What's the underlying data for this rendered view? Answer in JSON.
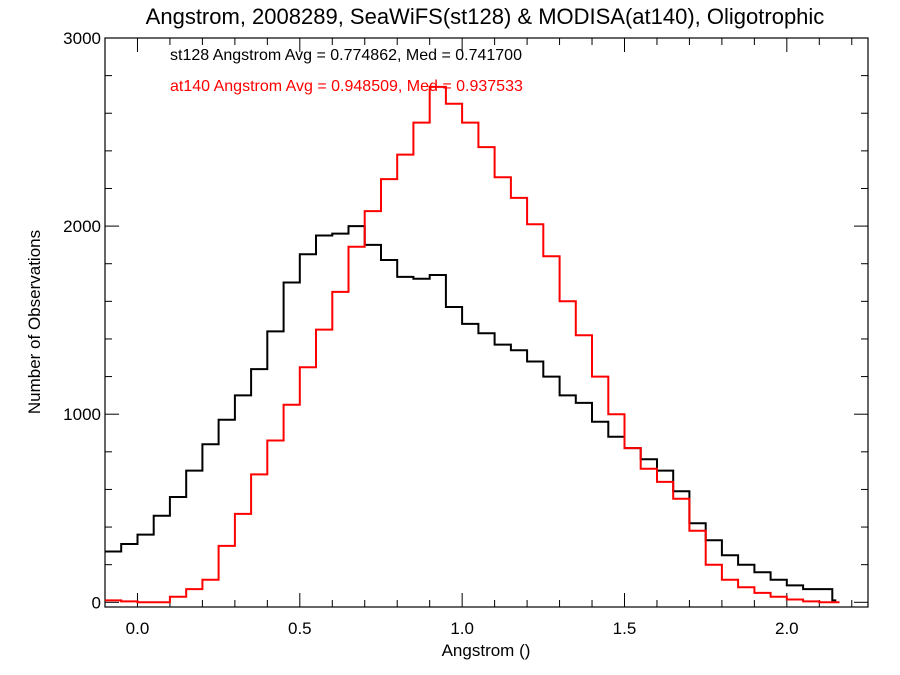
{
  "chart_data": {
    "type": "line",
    "title": "Angstrom, 2008289, SeaWiFS(st128) & MODISA(at140), Oligotrophic",
    "xlabel": "Angstrom ()",
    "ylabel": "Number of Observations",
    "xlim": [
      -0.1,
      2.25
    ],
    "ylim": [
      -25,
      3000
    ],
    "x_ticks": [
      0.0,
      0.5,
      1.0,
      1.5,
      2.0
    ],
    "x_tick_labels": [
      "0.0",
      "0.5",
      "1.0",
      "1.5",
      "2.0"
    ],
    "y_ticks": [
      0,
      1000,
      2000,
      3000
    ],
    "y_tick_labels": [
      "0",
      "1000",
      "2000",
      "3000"
    ],
    "grid": false,
    "legend_position": "top-left",
    "annotations": [
      "st128 Angstrom Avg = 0.774862, Med = 0.741700",
      "at140 Angstrom Avg = 0.948509, Med = 0.937533"
    ],
    "series": [
      {
        "name": "st128",
        "color": "#000000",
        "points": [
          [
            -0.1,
            270
          ],
          [
            -0.05,
            310
          ],
          [
            0.0,
            360
          ],
          [
            0.05,
            460
          ],
          [
            0.1,
            560
          ],
          [
            0.15,
            700
          ],
          [
            0.2,
            840
          ],
          [
            0.25,
            970
          ],
          [
            0.3,
            1100
          ],
          [
            0.35,
            1240
          ],
          [
            0.4,
            1440
          ],
          [
            0.45,
            1700
          ],
          [
            0.5,
            1850
          ],
          [
            0.55,
            1950
          ],
          [
            0.6,
            1960
          ],
          [
            0.65,
            2000
          ],
          [
            0.7,
            1900
          ],
          [
            0.75,
            1820
          ],
          [
            0.8,
            1730
          ],
          [
            0.85,
            1720
          ],
          [
            0.9,
            1740
          ],
          [
            0.95,
            1570
          ],
          [
            1.0,
            1480
          ],
          [
            1.05,
            1430
          ],
          [
            1.1,
            1370
          ],
          [
            1.15,
            1340
          ],
          [
            1.2,
            1280
          ],
          [
            1.25,
            1200
          ],
          [
            1.3,
            1100
          ],
          [
            1.35,
            1060
          ],
          [
            1.4,
            960
          ],
          [
            1.45,
            880
          ],
          [
            1.5,
            820
          ],
          [
            1.55,
            760
          ],
          [
            1.6,
            700
          ],
          [
            1.65,
            590
          ],
          [
            1.7,
            420
          ],
          [
            1.75,
            330
          ],
          [
            1.8,
            250
          ],
          [
            1.85,
            200
          ],
          [
            1.9,
            160
          ],
          [
            1.95,
            120
          ],
          [
            2.0,
            90
          ],
          [
            2.05,
            70
          ],
          [
            2.1,
            70
          ],
          [
            2.14,
            10
          ]
        ]
      },
      {
        "name": "at140",
        "color": "#ff0000",
        "points": [
          [
            -0.1,
            10
          ],
          [
            -0.05,
            5
          ],
          [
            0.0,
            0
          ],
          [
            0.05,
            0
          ],
          [
            0.1,
            30
          ],
          [
            0.15,
            70
          ],
          [
            0.2,
            120
          ],
          [
            0.25,
            300
          ],
          [
            0.3,
            470
          ],
          [
            0.35,
            680
          ],
          [
            0.4,
            860
          ],
          [
            0.45,
            1050
          ],
          [
            0.5,
            1250
          ],
          [
            0.55,
            1450
          ],
          [
            0.6,
            1650
          ],
          [
            0.65,
            1890
          ],
          [
            0.7,
            2080
          ],
          [
            0.75,
            2250
          ],
          [
            0.8,
            2380
          ],
          [
            0.85,
            2550
          ],
          [
            0.9,
            2740
          ],
          [
            0.95,
            2650
          ],
          [
            1.0,
            2550
          ],
          [
            1.05,
            2420
          ],
          [
            1.1,
            2260
          ],
          [
            1.15,
            2150
          ],
          [
            1.2,
            2010
          ],
          [
            1.25,
            1840
          ],
          [
            1.3,
            1600
          ],
          [
            1.35,
            1420
          ],
          [
            1.4,
            1200
          ],
          [
            1.45,
            1000
          ],
          [
            1.5,
            820
          ],
          [
            1.55,
            710
          ],
          [
            1.6,
            640
          ],
          [
            1.65,
            550
          ],
          [
            1.7,
            380
          ],
          [
            1.75,
            200
          ],
          [
            1.8,
            120
          ],
          [
            1.85,
            80
          ],
          [
            1.9,
            50
          ],
          [
            1.95,
            30
          ],
          [
            2.0,
            15
          ],
          [
            2.05,
            5
          ],
          [
            2.1,
            0
          ],
          [
            2.15,
            0
          ]
        ]
      }
    ]
  }
}
